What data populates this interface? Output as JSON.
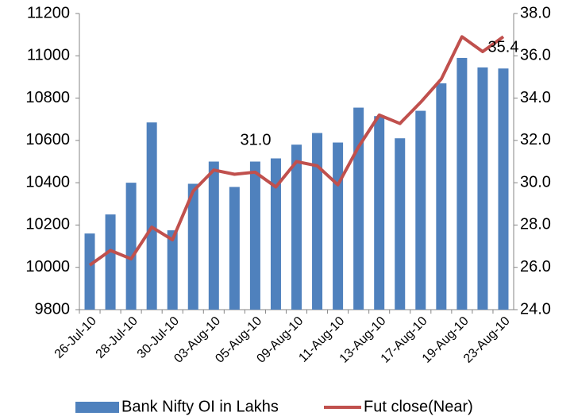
{
  "chart_data": {
    "type": "bar_line",
    "categories": [
      "26-Jul-10",
      null,
      "28-Jul-10",
      null,
      "30-Jul-10",
      null,
      "03-Aug-10",
      null,
      "05-Aug-10",
      null,
      "09-Aug-10",
      null,
      "11-Aug-10",
      null,
      "13-Aug-10",
      null,
      "17-Aug-10",
      null,
      "19-Aug-10",
      null,
      "23-Aug-10"
    ],
    "series": [
      {
        "name": "Bank Nifty OI in Lakhs",
        "type": "bar",
        "color": "#4f81bd",
        "values": [
          10160,
          10250,
          10400,
          10685,
          10175,
          10395,
          10500,
          10380,
          10500,
          10515,
          10580,
          10635,
          10590,
          10755,
          10715,
          10610,
          10740,
          10870,
          10990,
          10945,
          10940
        ]
      },
      {
        "name": "Fut close(Near)",
        "type": "line",
        "axis": "y2",
        "color": "#c0504d",
        "values": [
          26.1,
          26.8,
          26.4,
          27.9,
          27.3,
          29.6,
          30.6,
          30.4,
          30.5,
          29.8,
          31.0,
          30.8,
          29.9,
          31.7,
          33.2,
          32.8,
          33.8,
          34.9,
          36.9,
          36.2,
          36.9
        ]
      }
    ],
    "annotations": [
      "31.0",
      "35.4"
    ],
    "ylim": [
      9800,
      11200
    ],
    "yticks": [
      9800,
      10000,
      10200,
      10400,
      10600,
      10800,
      11000,
      11200
    ],
    "y2lim": [
      24,
      38
    ],
    "y2ticks": [
      {
        "value": 24,
        "label": "24.0"
      },
      {
        "value": 26,
        "label": "26.0"
      },
      {
        "value": 28,
        "label": "28.0"
      },
      {
        "value": 30,
        "label": "30.0"
      },
      {
        "value": 32,
        "label": "32.0"
      },
      {
        "value": 34,
        "label": "34.0"
      },
      {
        "value": 36,
        "label": "36.0"
      },
      {
        "value": 38,
        "label": "38.0"
      }
    ],
    "legend": "bottom"
  }
}
